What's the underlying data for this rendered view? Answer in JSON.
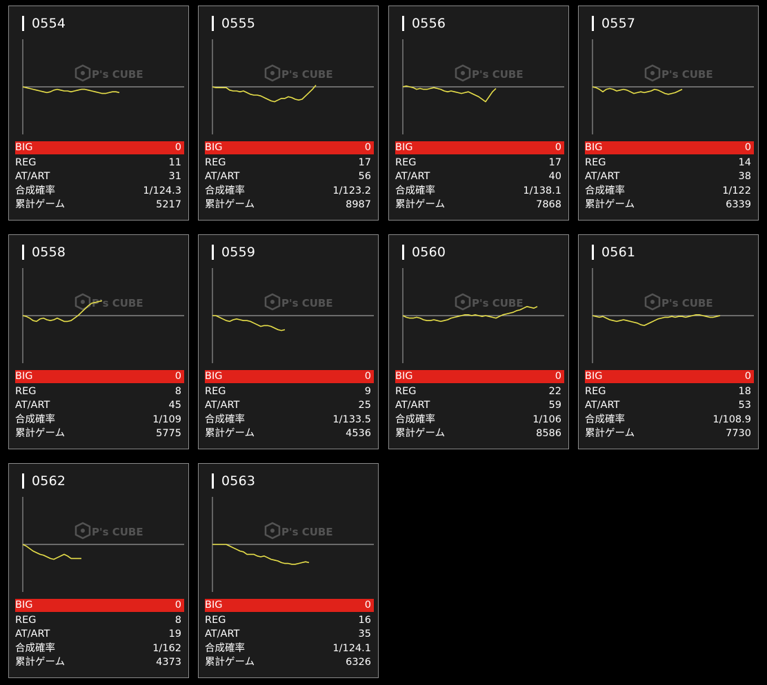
{
  "labels": {
    "big": "BIG",
    "reg": "REG",
    "at_art": "AT/ART",
    "combined_prob": "合成確率",
    "total_games": "累計ゲーム",
    "watermark": "P's CUBE"
  },
  "colors": {
    "background": "#000000",
    "card": "#1c1c1c",
    "big_bar": "#e0221a",
    "graph_line": "#e8e04a",
    "axis": "#9a9a9a"
  },
  "machines": [
    {
      "id": "0554",
      "big": "0",
      "reg": "11",
      "at_art": "31",
      "combined_prob": "1/124.3",
      "total_games": "5217",
      "trend": [
        0,
        -1,
        -2,
        -3,
        -4,
        -5,
        -6,
        -7,
        -6,
        -4,
        -3,
        -4,
        -5,
        -5,
        -6,
        -5,
        -4,
        -3,
        -3,
        -4,
        -5,
        -6,
        -7,
        -8,
        -8,
        -7,
        -6,
        -6,
        -7
      ]
    },
    {
      "id": "0555",
      "big": "0",
      "reg": "17",
      "at_art": "56",
      "combined_prob": "1/123.2",
      "total_games": "8987",
      "trend": [
        0,
        -1,
        -1,
        -1,
        -1,
        -4,
        -5,
        -5,
        -6,
        -5,
        -7,
        -9,
        -10,
        -10,
        -11,
        -13,
        -15,
        -17,
        -18,
        -16,
        -14,
        -14,
        -12,
        -13,
        -15,
        -16,
        -15,
        -11,
        -7,
        -3,
        2
      ]
    },
    {
      "id": "0556",
      "big": "0",
      "reg": "17",
      "at_art": "40",
      "combined_prob": "1/138.1",
      "total_games": "7868",
      "trend": [
        0,
        1,
        0,
        -1,
        -3,
        -2,
        -3,
        -3,
        -2,
        -1,
        -2,
        -3,
        -5,
        -6,
        -5,
        -6,
        -7,
        -8,
        -7,
        -6,
        -8,
        -10,
        -12,
        -15,
        -18,
        -12,
        -6,
        -2
      ]
    },
    {
      "id": "0557",
      "big": "0",
      "reg": "14",
      "at_art": "38",
      "combined_prob": "1/122",
      "total_games": "6339",
      "trend": [
        0,
        -1,
        -3,
        -6,
        -3,
        -2,
        -3,
        -5,
        -4,
        -3,
        -4,
        -6,
        -8,
        -7,
        -6,
        -7,
        -6,
        -5,
        -3,
        -4,
        -6,
        -8,
        -9,
        -8,
        -7,
        -5,
        -3
      ]
    },
    {
      "id": "0558",
      "big": "0",
      "reg": "8",
      "at_art": "45",
      "combined_prob": "1/109",
      "total_games": "5775",
      "trend": [
        0,
        -1,
        -3,
        -6,
        -7,
        -4,
        -3,
        -5,
        -6,
        -5,
        -3,
        -5,
        -7,
        -7,
        -6,
        -3,
        0,
        4,
        8,
        12,
        15,
        16,
        17,
        18
      ]
    },
    {
      "id": "0559",
      "big": "0",
      "reg": "9",
      "at_art": "25",
      "combined_prob": "1/133.5",
      "total_games": "4536",
      "trend": [
        0,
        0,
        -2,
        -4,
        -6,
        -7,
        -5,
        -4,
        -5,
        -6,
        -6,
        -7,
        -9,
        -11,
        -13,
        -12,
        -12,
        -13,
        -15,
        -17,
        -18,
        -17
      ]
    },
    {
      "id": "0560",
      "big": "0",
      "reg": "22",
      "at_art": "59",
      "combined_prob": "1/106",
      "total_games": "8586",
      "trend": [
        0,
        -2,
        -3,
        -3,
        -2,
        -3,
        -5,
        -6,
        -6,
        -5,
        -6,
        -7,
        -6,
        -5,
        -3,
        -2,
        -1,
        0,
        1,
        1,
        0,
        1,
        0,
        -1,
        0,
        -1,
        -2,
        -3,
        -1,
        1,
        2,
        3,
        4,
        6,
        7,
        9,
        11,
        10,
        9,
        11
      ]
    },
    {
      "id": "0561",
      "big": "0",
      "reg": "18",
      "at_art": "53",
      "combined_prob": "1/108.9",
      "total_games": "7730",
      "trend": [
        0,
        -1,
        -2,
        -1,
        -3,
        -5,
        -6,
        -7,
        -6,
        -5,
        -6,
        -7,
        -8,
        -9,
        -11,
        -12,
        -10,
        -8,
        -6,
        -4,
        -3,
        -2,
        -2,
        -1,
        -2,
        -1,
        -1,
        -2,
        -1,
        0,
        1,
        1,
        0,
        -1,
        -2,
        -2,
        -1,
        0
      ]
    },
    {
      "id": "0562",
      "big": "0",
      "reg": "8",
      "at_art": "19",
      "combined_prob": "1/162",
      "total_games": "4373",
      "trend": [
        0,
        -2,
        -5,
        -8,
        -10,
        -12,
        -13,
        -15,
        -17,
        -18,
        -16,
        -14,
        -12,
        -14,
        -17,
        -17,
        -17,
        -17
      ]
    },
    {
      "id": "0563",
      "big": "0",
      "reg": "16",
      "at_art": "35",
      "combined_prob": "1/124.1",
      "total_games": "6326",
      "trend": [
        0,
        0,
        0,
        0,
        0,
        -2,
        -4,
        -6,
        -8,
        -9,
        -12,
        -12,
        -12,
        -14,
        -15,
        -14,
        -16,
        -18,
        -19,
        -20,
        -22,
        -23,
        -23,
        -24,
        -24,
        -23,
        -22,
        -21,
        -22
      ]
    }
  ]
}
